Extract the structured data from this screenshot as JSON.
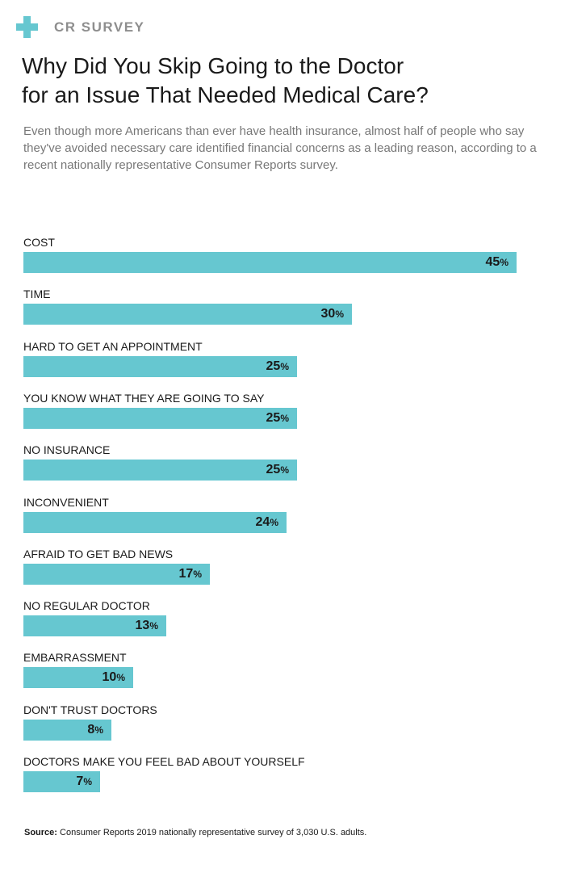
{
  "brand": {
    "label": "CR SURVEY",
    "icon": "plus-icon",
    "accent_color": "#66c7d0"
  },
  "title_line1": "Why Did You Skip Going to the Doctor",
  "title_line2": "for an Issue That Needed Medical Care?",
  "subtitle": "Even though more Americans than ever have health insurance, almost half of people who say they've avoided necessary care identified financial concerns as a leading reason, according to a recent nationally representative Consumer Reports survey.",
  "chart_data": {
    "type": "bar",
    "orientation": "horizontal",
    "categories": [
      "COST",
      "TIME",
      "HARD TO GET AN APPOINTMENT",
      "YOU KNOW WHAT THEY ARE GOING TO SAY",
      "NO INSURANCE",
      "INCONVENIENT",
      "AFRAID TO GET BAD NEWS",
      "NO REGULAR DOCTOR",
      "EMBARRASSMENT",
      "DON'T TRUST DOCTORS",
      "DOCTORS MAKE YOU FEEL BAD ABOUT YOURSELF"
    ],
    "values": [
      45,
      30,
      25,
      25,
      25,
      24,
      17,
      13,
      10,
      8,
      7
    ],
    "unit": "%",
    "bar_color": "#66c7d0",
    "xlim": [
      0,
      45
    ],
    "grid": false,
    "legend": "none"
  },
  "source": {
    "label": "Source:",
    "text": "Consumer Reports 2019 nationally representative survey of 3,030 U.S. adults."
  }
}
